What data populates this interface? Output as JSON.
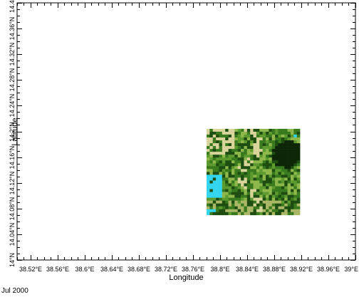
{
  "chart_data": {
    "type": "heatmap",
    "title": "",
    "xlabel": "Longitude",
    "ylabel": "Latitude",
    "xlim": [
      38.5,
      39.0
    ],
    "ylim": [
      14.0,
      14.4
    ],
    "x_ticks": [
      38.52,
      38.56,
      38.6,
      38.64,
      38.68,
      38.72,
      38.76,
      38.8,
      38.84,
      38.88,
      38.92,
      38.96,
      39.0
    ],
    "x_tick_labels": [
      "38.52°E",
      "38.56°E",
      "38.6°E",
      "38.64°E",
      "38.68°E",
      "38.72°E",
      "38.76°E",
      "38.8°E",
      "38.84°E",
      "38.88°E",
      "38.92°E",
      "38.96°E",
      "39°E"
    ],
    "y_ticks": [
      14.0,
      14.04,
      14.08,
      14.12,
      14.16,
      14.2,
      14.24,
      14.28,
      14.32,
      14.36,
      14.4
    ],
    "y_tick_labels": [
      "14°N",
      "14.04°N",
      "14.08°N",
      "14.12°N",
      "14.16°N",
      "14.2°N",
      "14.24°N",
      "14.28°N",
      "14.32°N",
      "14.36°N",
      "14.4°N"
    ],
    "minor_tick_step": 0.01,
    "data_extent": {
      "lon": [
        38.78,
        38.918
      ],
      "lat": [
        14.07,
        14.204
      ]
    },
    "raster_grid": {
      "cols": 30,
      "rows": 30
    },
    "palette": {
      "dark_green": "#1e4d12",
      "green": "#3a7a1e",
      "mid_green": "#5d9a2f",
      "light_green": "#8fb84c",
      "olive": "#a9b766",
      "tan": "#d8d49a",
      "cyan": "#33d6ee",
      "near_black": "#0c2607"
    },
    "grid": false,
    "legend": "none"
  },
  "footnote": "Jul 2000"
}
